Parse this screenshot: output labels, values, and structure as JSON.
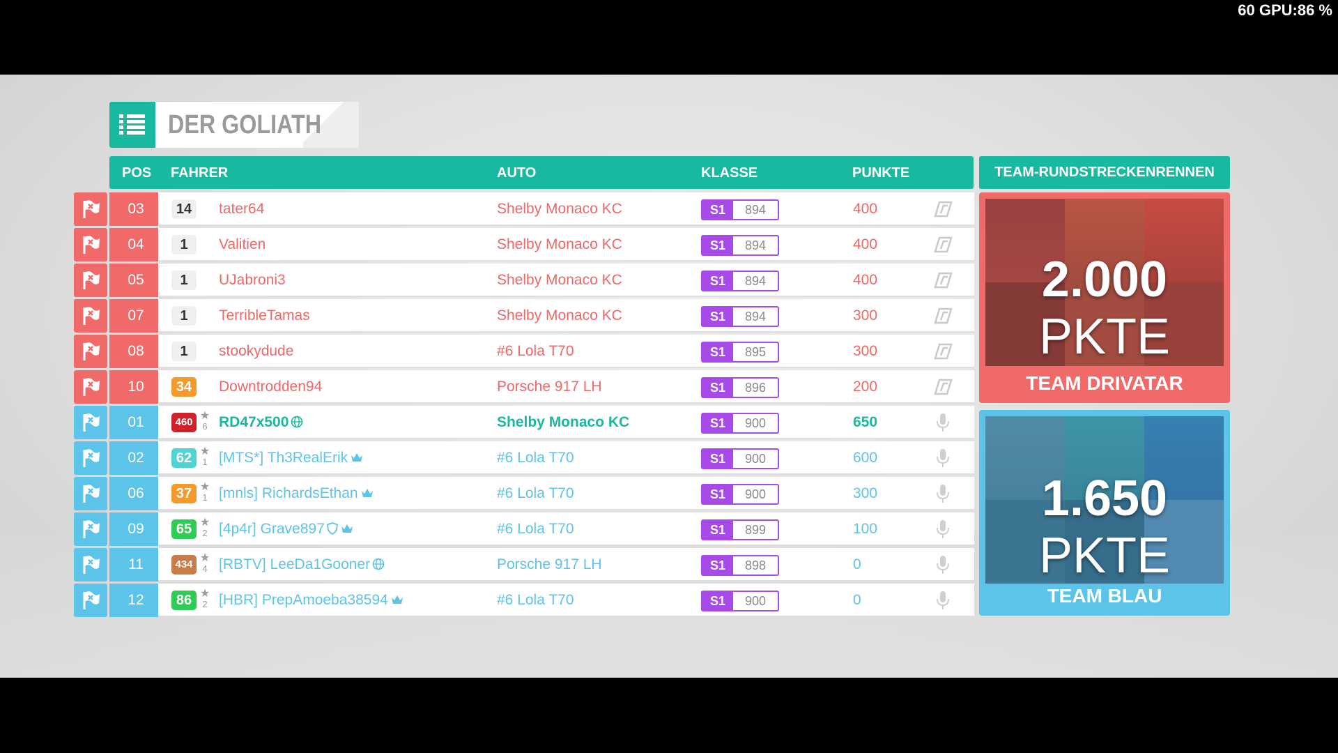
{
  "overlay": {
    "perf": "60 GPU:86 %"
  },
  "title": "DER GOLIATH",
  "columns": {
    "pos": "POS",
    "driver": "FAHRER",
    "car": "AUTO",
    "class": "KLASSE",
    "points": "PUNKTE",
    "event": "TEAM-RUNDSTRECKENRENNEN"
  },
  "rows": [
    {
      "team": "red",
      "pos": "03",
      "level": "14",
      "level_color": "#f0f0f0",
      "stars": "",
      "name": "tater64",
      "car": "Shelby Monaco KC",
      "class": "S1",
      "rating": "894",
      "points": "400",
      "icon": "ai-icon"
    },
    {
      "team": "red",
      "pos": "04",
      "level": "1",
      "level_color": "#f0f0f0",
      "stars": "",
      "name": "Valitien",
      "car": "Shelby Monaco KC",
      "class": "S1",
      "rating": "894",
      "points": "400",
      "icon": "ai-icon"
    },
    {
      "team": "red",
      "pos": "05",
      "level": "1",
      "level_color": "#f0f0f0",
      "stars": "",
      "name": "UJabroni3",
      "car": "Shelby Monaco KC",
      "class": "S1",
      "rating": "894",
      "points": "400",
      "icon": "ai-icon"
    },
    {
      "team": "red",
      "pos": "07",
      "level": "1",
      "level_color": "#f0f0f0",
      "stars": "",
      "name": "TerribleTamas",
      "car": "Shelby Monaco KC",
      "class": "S1",
      "rating": "894",
      "points": "300",
      "icon": "ai-icon"
    },
    {
      "team": "red",
      "pos": "08",
      "level": "1",
      "level_color": "#f0f0f0",
      "stars": "",
      "name": "stookydude",
      "car": "#6 Lola T70",
      "class": "S1",
      "rating": "895",
      "points": "300",
      "icon": "ai-icon"
    },
    {
      "team": "red",
      "pos": "10",
      "level": "34",
      "level_color": "#f39a2a",
      "stars": "",
      "name": "Downtrodden94",
      "car": "Porsche 917 LH",
      "class": "S1",
      "rating": "896",
      "points": "200",
      "icon": "ai-icon"
    },
    {
      "team": "blue",
      "me": true,
      "pos": "01",
      "level": "460",
      "level_color": "#d0202a",
      "stars": "6",
      "name": "RD47x500",
      "badge": "globe",
      "car": "Shelby Monaco KC",
      "class": "S1",
      "rating": "900",
      "points": "650",
      "icon": "mic-icon"
    },
    {
      "team": "blue",
      "pos": "02",
      "level": "62",
      "level_color": "#4fd3d3",
      "stars": "1",
      "name": "[MTS*] Th3RealErik",
      "badge": "crown",
      "car": "#6 Lola T70",
      "class": "S1",
      "rating": "900",
      "points": "600",
      "icon": "mic-icon"
    },
    {
      "team": "blue",
      "pos": "06",
      "level": "37",
      "level_color": "#f39a2a",
      "stars": "1",
      "name": "[mnls] RichardsEthan",
      "badge": "crown",
      "car": "#6 Lola T70",
      "class": "S1",
      "rating": "900",
      "points": "300",
      "icon": "mic-icon"
    },
    {
      "team": "blue",
      "pos": "09",
      "level": "65",
      "level_color": "#2ecc55",
      "stars": "2",
      "name": "[4p4r] Grave897",
      "badge": "shield-crown",
      "car": "#6 Lola T70",
      "class": "S1",
      "rating": "899",
      "points": "100",
      "icon": "mic-icon"
    },
    {
      "team": "blue",
      "pos": "11",
      "level": "434",
      "level_color": "#c97b4a",
      "stars": "4",
      "name": "[RBTV] LeeDa1Gooner",
      "badge": "globe",
      "car": "Porsche 917 LH",
      "class": "S1",
      "rating": "898",
      "points": "0",
      "icon": "mic-icon"
    },
    {
      "team": "blue",
      "pos": "12",
      "level": "86",
      "level_color": "#2ecc55",
      "stars": "2",
      "name": "[HBR] PrepAmoeba38594",
      "badge": "crown",
      "car": "#6 Lola T70",
      "class": "S1",
      "rating": "900",
      "points": "0",
      "icon": "mic-icon"
    }
  ],
  "teams": [
    {
      "id": "red",
      "score_value": "2.000",
      "score_unit": "PKTE",
      "name": "TEAM DRIVATAR",
      "color": "#f06a6a"
    },
    {
      "id": "blue",
      "score_value": "1.650",
      "score_unit": "PKTE",
      "name": "TEAM BLAU",
      "color": "#5cc4e9"
    }
  ]
}
